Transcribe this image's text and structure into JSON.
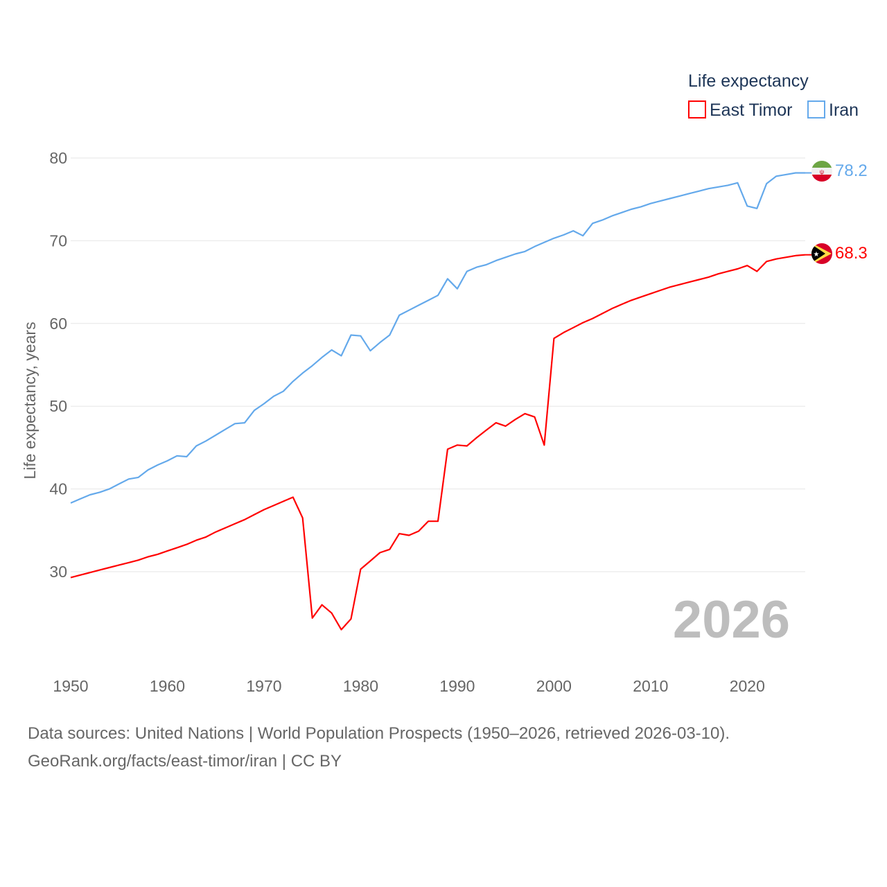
{
  "chart_data": {
    "type": "line",
    "title": "Life expectancy",
    "ylabel": "Life expectancy, years",
    "xlabel": "",
    "xlim": [
      1950,
      2026
    ],
    "ylim": [
      20,
      80
    ],
    "y_ticks": [
      30,
      40,
      50,
      60,
      70,
      80
    ],
    "x_ticks": [
      1950,
      1960,
      1970,
      1980,
      1990,
      2000,
      2010,
      2020
    ],
    "grid": true,
    "legend_position": "top-right",
    "year_label": "2026",
    "x": [
      1950,
      1951,
      1952,
      1953,
      1954,
      1955,
      1956,
      1957,
      1958,
      1959,
      1960,
      1961,
      1962,
      1963,
      1964,
      1965,
      1966,
      1967,
      1968,
      1969,
      1970,
      1971,
      1972,
      1973,
      1974,
      1975,
      1976,
      1977,
      1978,
      1979,
      1980,
      1981,
      1982,
      1983,
      1984,
      1985,
      1986,
      1987,
      1988,
      1989,
      1990,
      1991,
      1992,
      1993,
      1994,
      1995,
      1996,
      1997,
      1998,
      1999,
      2000,
      2001,
      2002,
      2003,
      2004,
      2005,
      2006,
      2007,
      2008,
      2009,
      2010,
      2011,
      2012,
      2013,
      2014,
      2015,
      2016,
      2017,
      2018,
      2019,
      2020,
      2021,
      2022,
      2023,
      2024,
      2025,
      2026
    ],
    "series": [
      {
        "name": "East Timor",
        "color": "#ff0000",
        "end_label": "68.3",
        "values": [
          29.3,
          29.6,
          29.9,
          30.2,
          30.5,
          30.8,
          31.1,
          31.4,
          31.8,
          32.1,
          32.5,
          32.9,
          33.3,
          33.8,
          34.2,
          34.8,
          35.3,
          35.8,
          36.3,
          36.9,
          37.5,
          38.0,
          38.5,
          39.0,
          36.5,
          24.4,
          26.0,
          25.0,
          23.0,
          24.3,
          30.3,
          31.3,
          32.3,
          32.7,
          34.6,
          34.4,
          34.9,
          36.1,
          36.1,
          44.8,
          45.3,
          45.2,
          46.2,
          47.1,
          48.0,
          47.6,
          48.4,
          49.1,
          48.7,
          45.3,
          58.2,
          58.9,
          59.5,
          60.1,
          60.6,
          61.2,
          61.8,
          62.3,
          62.8,
          63.2,
          63.6,
          64.0,
          64.4,
          64.7,
          65.0,
          65.3,
          65.6,
          66.0,
          66.3,
          66.6,
          67.0,
          66.3,
          67.5,
          67.8,
          68.0,
          68.2,
          68.3
        ]
      },
      {
        "name": "Iran",
        "color": "#64a9eb",
        "end_label": "78.2",
        "values": [
          38.3,
          38.8,
          39.3,
          39.6,
          40.0,
          40.6,
          41.2,
          41.4,
          42.3,
          42.9,
          43.4,
          44.0,
          43.9,
          45.2,
          45.8,
          46.5,
          47.2,
          47.9,
          48.0,
          49.5,
          50.3,
          51.2,
          51.8,
          53.0,
          54.0,
          54.9,
          55.9,
          56.8,
          56.1,
          58.6,
          58.5,
          56.7,
          57.7,
          58.6,
          61.0,
          61.6,
          62.2,
          62.8,
          63.4,
          65.4,
          64.2,
          66.3,
          66.8,
          67.1,
          67.6,
          68.0,
          68.4,
          68.7,
          69.3,
          69.8,
          70.3,
          70.7,
          71.2,
          70.6,
          72.1,
          72.5,
          73.0,
          73.4,
          73.8,
          74.1,
          74.5,
          74.8,
          75.1,
          75.4,
          75.7,
          76.0,
          76.3,
          76.5,
          76.7,
          77.0,
          74.2,
          73.9,
          76.9,
          77.8,
          78.0,
          78.2,
          78.2
        ]
      }
    ]
  },
  "footer": {
    "line1": "Data sources: United Nations | World Population Prospects (1950–2026, retrieved 2026-03-10).",
    "line2": "GeoRank.org/facts/east-timor/iran | CC BY"
  }
}
